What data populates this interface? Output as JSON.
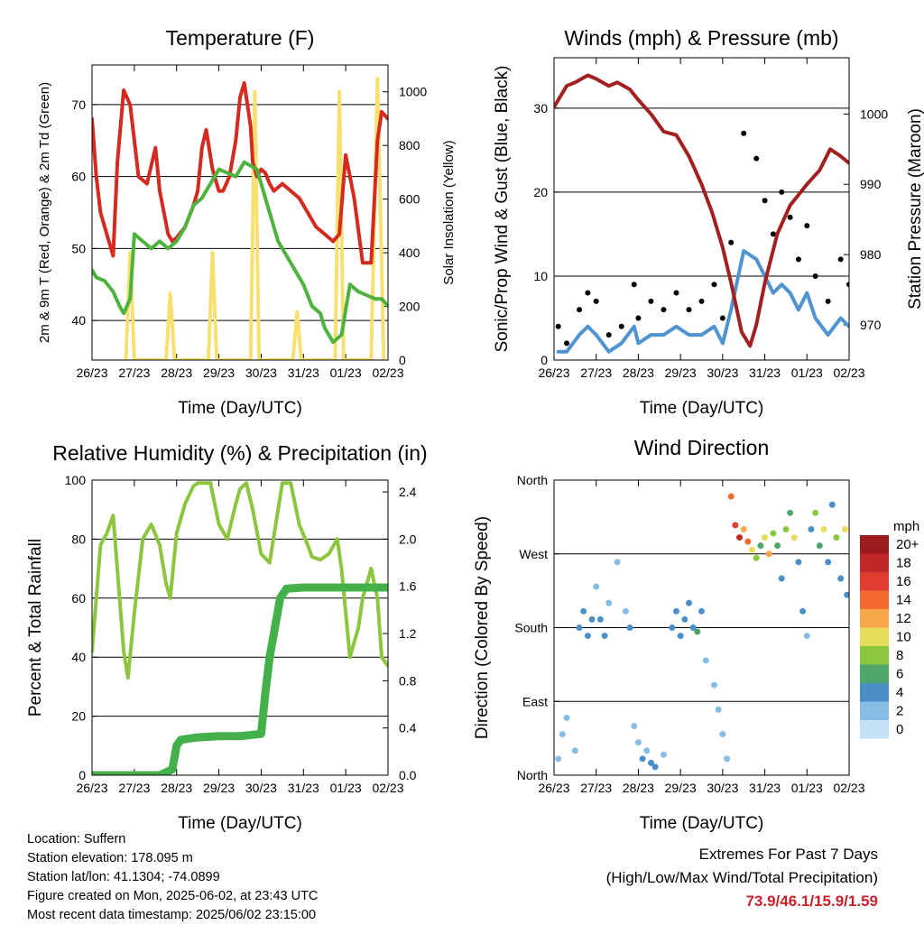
{
  "colors": {
    "temp_red": "#d42a20",
    "temp_orange": "#f47b20",
    "dew_green": "#4db33d",
    "solar_yellow": "#f7df70",
    "wind_black": "#000000",
    "gust_blue": "#4f94cf",
    "pressure_maroon": "#a32020",
    "rh_lightgreen": "#8cc63f",
    "precip_green": "#43b049"
  },
  "chart_data": [
    {
      "type": "line",
      "title": "Temperature (F)",
      "xlabel": "Time (Day/UTC)",
      "ylabel_left": "2m & 9m T (Red, Orange) & 2m Td (Green)",
      "ylabel_right": "Solar Insolation (Yellow)",
      "x_ticks": [
        "26/23",
        "27/23",
        "28/23",
        "29/23",
        "30/23",
        "31/23",
        "01/23",
        "02/23"
      ],
      "xlim": [
        0,
        7
      ],
      "ylim_left": [
        34.5,
        75.5
      ],
      "yticks_left": [
        40,
        50,
        60,
        70
      ],
      "ylim_right": [
        0,
        1100
      ],
      "yticks_right": [
        0,
        200,
        400,
        600,
        800,
        1000
      ],
      "grid": true,
      "series": [
        {
          "color": "#d42a20",
          "axis": "left",
          "x": [
            0,
            0.1,
            0.2,
            0.4,
            0.5,
            0.6,
            0.75,
            0.9,
            1.0,
            1.1,
            1.3,
            1.5,
            1.6,
            1.7,
            1.8,
            1.9,
            2.0,
            2.2,
            2.4,
            2.5,
            2.6,
            2.7,
            2.85,
            3.0,
            3.1,
            3.25,
            3.4,
            3.5,
            3.6,
            3.75,
            3.8,
            3.9,
            4.0,
            4.1,
            4.2,
            4.3,
            4.5,
            4.7,
            4.9,
            5.1,
            5.3,
            5.5,
            5.7,
            5.85,
            6.0,
            6.2,
            6.4,
            6.6,
            6.75,
            6.85,
            7.0
          ],
          "y": [
            68,
            60,
            55,
            51,
            49,
            62,
            72,
            70,
            65,
            60,
            59,
            64,
            58,
            55,
            52,
            51,
            51.5,
            53,
            56,
            58,
            64,
            66.5,
            61,
            58,
            58,
            60,
            65,
            71,
            73,
            67,
            62,
            60,
            61,
            60.5,
            59,
            58,
            59,
            58,
            57,
            55,
            53,
            52,
            51,
            52,
            63,
            57,
            48,
            48,
            65,
            69,
            68
          ]
        },
        {
          "color": "#4db33d",
          "axis": "left",
          "x": [
            0,
            0.1,
            0.3,
            0.5,
            0.65,
            0.75,
            0.9,
            1.0,
            1.2,
            1.4,
            1.6,
            1.8,
            2.0,
            2.2,
            2.4,
            2.6,
            2.8,
            3.0,
            3.2,
            3.4,
            3.6,
            3.75,
            3.9,
            4.0,
            4.2,
            4.4,
            4.5,
            4.7,
            4.9,
            5.0,
            5.2,
            5.4,
            5.5,
            5.7,
            5.9,
            6.1,
            6.3,
            6.5,
            6.7,
            6.85,
            7.0
          ],
          "y": [
            47,
            46,
            45.5,
            44,
            42,
            41,
            43,
            52,
            51,
            50,
            51,
            50,
            51,
            53,
            56,
            57,
            59,
            61,
            60.5,
            60,
            62,
            61.5,
            61,
            59,
            55,
            51,
            50,
            48,
            46,
            45,
            42,
            41,
            39,
            37,
            38,
            45,
            44,
            43.5,
            43,
            43,
            42
          ]
        },
        {
          "color": "#f7df70",
          "axis": "right",
          "x": [
            0.8,
            0.9,
            1.0,
            1.75,
            1.85,
            1.95,
            2.75,
            2.85,
            2.95,
            3.75,
            3.85,
            3.95,
            4.75,
            4.85,
            4.95,
            5.75,
            5.85,
            5.95,
            6.6,
            6.75,
            6.9
          ],
          "y": [
            0,
            400,
            0,
            0,
            250,
            0,
            0,
            400,
            0,
            0,
            1000,
            0,
            0,
            180,
            0,
            0,
            1000,
            0,
            0,
            1050,
            0
          ]
        }
      ]
    },
    {
      "type": "scatter",
      "title": "Winds (mph) & Pressure (mb)",
      "xlabel": "Time (Day/UTC)",
      "ylabel_left": "Sonic/Prop Wind & Gust (Blue, Black)",
      "ylabel_right": "Station Pressure (Maroon)",
      "x_ticks": [
        "26/23",
        "27/23",
        "28/23",
        "29/23",
        "30/23",
        "31/23",
        "01/23",
        "02/23"
      ],
      "xlim": [
        0,
        7
      ],
      "ylim_left": [
        0,
        36
      ],
      "yticks_left": [
        0,
        10,
        20,
        30
      ],
      "ylim_right": [
        965,
        1008
      ],
      "yticks_right": [
        970,
        980,
        990,
        1000
      ],
      "grid": true,
      "series": [
        {
          "color": "#000000",
          "axis": "left",
          "kind": "points",
          "x": [
            0.1,
            0.3,
            0.6,
            0.8,
            1.0,
            1.3,
            1.6,
            1.9,
            2.0,
            2.3,
            2.6,
            2.9,
            3.2,
            3.5,
            3.8,
            4.0,
            4.2,
            4.5,
            4.8,
            5.0,
            5.2,
            5.4,
            5.6,
            5.8,
            6.0,
            6.2,
            6.5,
            6.8,
            7.0
          ],
          "y": [
            4,
            2,
            6,
            8,
            7,
            3,
            4,
            9,
            5,
            7,
            6,
            8,
            6,
            7,
            9,
            5,
            14,
            27,
            24,
            19,
            15,
            20,
            17,
            12,
            16,
            10,
            7,
            12,
            9
          ]
        },
        {
          "color": "#4f94cf",
          "axis": "left",
          "kind": "line",
          "x": [
            0.1,
            0.3,
            0.6,
            0.8,
            1.0,
            1.3,
            1.6,
            1.9,
            2.0,
            2.3,
            2.6,
            2.9,
            3.2,
            3.5,
            3.8,
            4.0,
            4.2,
            4.5,
            4.8,
            5.0,
            5.2,
            5.4,
            5.6,
            5.8,
            6.0,
            6.2,
            6.5,
            6.8,
            7.0
          ],
          "y": [
            1,
            1,
            3,
            4,
            3,
            1,
            2,
            4,
            2,
            3,
            3,
            4,
            3,
            3,
            4,
            2,
            6,
            13,
            12,
            10,
            8,
            9,
            8,
            6,
            8,
            5,
            3,
            5,
            4
          ]
        },
        {
          "color": "#a32020",
          "axis": "right",
          "kind": "line",
          "x": [
            0,
            0.3,
            0.5,
            0.8,
            1.0,
            1.3,
            1.5,
            1.8,
            2.0,
            2.3,
            2.6,
            2.9,
            3.2,
            3.5,
            3.75,
            4.0,
            4.2,
            4.45,
            4.65,
            4.8,
            5.0,
            5.3,
            5.6,
            6.0,
            6.3,
            6.55,
            6.8,
            7.0
          ],
          "y": [
            1001,
            1004,
            1004.5,
            1005.5,
            1005,
            1004,
            1004.5,
            1003.5,
            1002,
            1000,
            997.5,
            997,
            994,
            990,
            986,
            981,
            976,
            969,
            967,
            970,
            976,
            983,
            987,
            990,
            992,
            995,
            994,
            993
          ]
        }
      ]
    },
    {
      "type": "line",
      "title": "Relative Humidity (%) & Precipitation (in)",
      "xlabel": "Time (Day/UTC)",
      "ylabel_left": "Percent & Total Rainfall",
      "x_ticks": [
        "26/23",
        "27/23",
        "28/23",
        "29/23",
        "30/23",
        "31/23",
        "01/23",
        "02/23"
      ],
      "xlim": [
        0,
        7
      ],
      "ylim_left": [
        0,
        100
      ],
      "yticks_left": [
        0,
        20,
        40,
        60,
        80,
        100
      ],
      "ylim_right": [
        0,
        2.5
      ],
      "yticks_right": [
        0.0,
        0.4,
        0.8,
        1.2,
        1.6,
        2.0,
        2.4
      ],
      "grid": true,
      "series": [
        {
          "color": "#8cc63f",
          "axis": "left",
          "width": 4,
          "x": [
            0,
            0.1,
            0.2,
            0.35,
            0.5,
            0.65,
            0.75,
            0.85,
            1.0,
            1.2,
            1.4,
            1.6,
            1.75,
            1.85,
            2.0,
            2.2,
            2.4,
            2.5,
            2.6,
            2.8,
            3.0,
            3.2,
            3.4,
            3.5,
            3.65,
            3.8,
            4.0,
            4.2,
            4.4,
            4.5,
            4.7,
            4.9,
            5.1,
            5.2,
            5.4,
            5.6,
            5.8,
            5.9,
            6.1,
            6.3,
            6.4,
            6.6,
            6.75,
            6.85,
            7.0
          ],
          "y": [
            42,
            60,
            78,
            82,
            88,
            60,
            42,
            33,
            55,
            80,
            85,
            78,
            65,
            60,
            82,
            92,
            98,
            99,
            99,
            99,
            85,
            80,
            92,
            97,
            99,
            90,
            75,
            72,
            90,
            99,
            99,
            85,
            78,
            74,
            73,
            75,
            80,
            70,
            40,
            50,
            60,
            70,
            60,
            40,
            37
          ]
        },
        {
          "color": "#43b049",
          "axis": "right",
          "width": 9,
          "x": [
            0,
            0.8,
            1.6,
            1.9,
            2.0,
            2.1,
            2.5,
            3.0,
            3.5,
            4.0,
            4.1,
            4.2,
            4.3,
            4.45,
            4.6,
            5.0,
            5.5,
            6.0,
            6.5,
            7.0
          ],
          "y": [
            0,
            0,
            0,
            0.05,
            0.25,
            0.3,
            0.32,
            0.33,
            0.33,
            0.35,
            0.7,
            1.0,
            1.2,
            1.5,
            1.58,
            1.59,
            1.59,
            1.59,
            1.59,
            1.59
          ]
        }
      ]
    },
    {
      "type": "scatter",
      "title": "Wind Direction",
      "xlabel": "Time (Day/UTC)",
      "ylabel_left": "Direction (Colored By Speed)",
      "x_ticks": [
        "26/23",
        "27/23",
        "28/23",
        "29/23",
        "30/23",
        "31/23",
        "01/23",
        "02/23"
      ],
      "xlim": [
        0,
        7
      ],
      "ylim_left": [
        0,
        360
      ],
      "ytick_values": [
        0,
        90,
        180,
        270,
        360
      ],
      "ytick_labels": [
        "North",
        "East",
        "South",
        "West",
        "North"
      ],
      "grid": true,
      "colorbar": {
        "unit": "mph",
        "labels": [
          "20+",
          "18",
          "16",
          "14",
          "12",
          "10",
          "8",
          "6",
          "4",
          "2",
          "0"
        ],
        "colors": [
          "#9b1b1e",
          "#c0282a",
          "#e03c2f",
          "#f26a30",
          "#f8a84a",
          "#e6dd5a",
          "#8cc63f",
          "#4fa66a",
          "#4a8fc8",
          "#86bde6",
          "#c3e2f6"
        ]
      },
      "points": [
        {
          "x": 0.1,
          "y": 20,
          "s": 1
        },
        {
          "x": 0.2,
          "y": 50,
          "s": 1
        },
        {
          "x": 0.3,
          "y": 70,
          "s": 1
        },
        {
          "x": 0.5,
          "y": 30,
          "s": 2
        },
        {
          "x": 0.6,
          "y": 180,
          "s": 3
        },
        {
          "x": 0.7,
          "y": 200,
          "s": 3
        },
        {
          "x": 0.8,
          "y": 170,
          "s": 4
        },
        {
          "x": 0.9,
          "y": 190,
          "s": 3
        },
        {
          "x": 1.0,
          "y": 230,
          "s": 2
        },
        {
          "x": 1.1,
          "y": 190,
          "s": 3
        },
        {
          "x": 1.2,
          "y": 170,
          "s": 4
        },
        {
          "x": 1.3,
          "y": 210,
          "s": 2
        },
        {
          "x": 1.5,
          "y": 260,
          "s": 1
        },
        {
          "x": 1.7,
          "y": 200,
          "s": 2
        },
        {
          "x": 1.8,
          "y": 180,
          "s": 3
        },
        {
          "x": 1.9,
          "y": 60,
          "s": 1
        },
        {
          "x": 2.0,
          "y": 40,
          "s": 2
        },
        {
          "x": 2.1,
          "y": 20,
          "s": 3
        },
        {
          "x": 2.2,
          "y": 30,
          "s": 2
        },
        {
          "x": 2.3,
          "y": 15,
          "s": 4
        },
        {
          "x": 2.4,
          "y": 10,
          "s": 3
        },
        {
          "x": 2.6,
          "y": 25,
          "s": 2
        },
        {
          "x": 2.8,
          "y": 180,
          "s": 3
        },
        {
          "x": 2.9,
          "y": 200,
          "s": 4
        },
        {
          "x": 3.0,
          "y": 170,
          "s": 3
        },
        {
          "x": 3.1,
          "y": 190,
          "s": 4
        },
        {
          "x": 3.2,
          "y": 210,
          "s": 3
        },
        {
          "x": 3.3,
          "y": 180,
          "s": 4
        },
        {
          "x": 3.4,
          "y": 175,
          "s": 5
        },
        {
          "x": 3.5,
          "y": 200,
          "s": 3
        },
        {
          "x": 3.6,
          "y": 140,
          "s": 1
        },
        {
          "x": 3.8,
          "y": 110,
          "s": 1
        },
        {
          "x": 3.9,
          "y": 80,
          "s": 1
        },
        {
          "x": 4.0,
          "y": 50,
          "s": 1
        },
        {
          "x": 4.1,
          "y": 20,
          "s": 2
        },
        {
          "x": 4.2,
          "y": 340,
          "s": 14
        },
        {
          "x": 4.3,
          "y": 305,
          "s": 16
        },
        {
          "x": 4.4,
          "y": 290,
          "s": 18
        },
        {
          "x": 4.5,
          "y": 300,
          "s": 12
        },
        {
          "x": 4.6,
          "y": 285,
          "s": 14
        },
        {
          "x": 4.7,
          "y": 275,
          "s": 10
        },
        {
          "x": 4.8,
          "y": 265,
          "s": 8
        },
        {
          "x": 4.9,
          "y": 280,
          "s": 6
        },
        {
          "x": 5.0,
          "y": 290,
          "s": 10
        },
        {
          "x": 5.1,
          "y": 270,
          "s": 12
        },
        {
          "x": 5.2,
          "y": 295,
          "s": 8
        },
        {
          "x": 5.3,
          "y": 280,
          "s": 6
        },
        {
          "x": 5.4,
          "y": 240,
          "s": 4
        },
        {
          "x": 5.5,
          "y": 300,
          "s": 8
        },
        {
          "x": 5.6,
          "y": 320,
          "s": 6
        },
        {
          "x": 5.7,
          "y": 290,
          "s": 10
        },
        {
          "x": 5.8,
          "y": 260,
          "s": 4
        },
        {
          "x": 5.9,
          "y": 200,
          "s": 3
        },
        {
          "x": 6.0,
          "y": 170,
          "s": 2
        },
        {
          "x": 6.1,
          "y": 300,
          "s": 4
        },
        {
          "x": 6.2,
          "y": 320,
          "s": 8
        },
        {
          "x": 6.3,
          "y": 280,
          "s": 6
        },
        {
          "x": 6.4,
          "y": 300,
          "s": 9
        },
        {
          "x": 6.5,
          "y": 260,
          "s": 3
        },
        {
          "x": 6.6,
          "y": 330,
          "s": 4
        },
        {
          "x": 6.7,
          "y": 290,
          "s": 8
        },
        {
          "x": 6.8,
          "y": 240,
          "s": 4
        },
        {
          "x": 6.9,
          "y": 300,
          "s": 10
        },
        {
          "x": 6.95,
          "y": 220,
          "s": 4
        }
      ]
    }
  ],
  "footer": {
    "location": "Location: Suffern",
    "elevation": "Station elevation: 178.095 m",
    "latlon": "Station lat/lon: 41.1304; -74.0899",
    "created": "Figure created on Mon, 2025-06-02, at 23:43 UTC",
    "recent": "Most recent data timestamp: 2025/06/02 23:15:00"
  },
  "extremes": {
    "title": "Extremes For Past 7 Days",
    "subtitle": "(High/Low/Max Wind/Total Precipitation)",
    "values": "73.9/46.1/15.9/1.59"
  }
}
